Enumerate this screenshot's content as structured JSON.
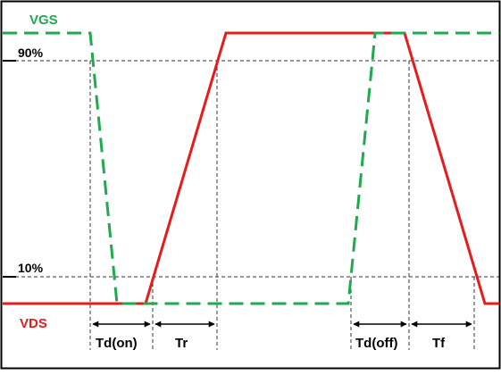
{
  "labels": {
    "vgs": "VGS",
    "vds": "VDS",
    "level_high": "90%",
    "level_low": "10%",
    "td_on": "Td(on)",
    "tr": "Tr",
    "td_off": "Td(off)",
    "tf": "Tf"
  },
  "colors": {
    "vgs": "#1faa4f",
    "vds": "#e61b1b",
    "guides": "#333333",
    "frame": "#000000",
    "text": "#000000"
  }
}
